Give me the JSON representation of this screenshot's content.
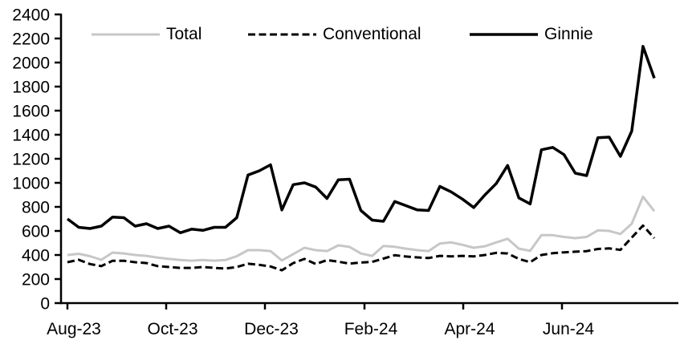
{
  "page": {
    "background": "#ffffff",
    "axis_color": "#000000"
  },
  "chart_data": {
    "type": "line",
    "title": "",
    "xlabel": "",
    "ylabel": "",
    "grid": false,
    "legend_position": "top",
    "x_axis": {
      "tick_labels": [
        "Aug-23",
        "Oct-23",
        "Dec-23",
        "Feb-24",
        "Apr-24",
        "Jun-24"
      ],
      "tick_positions_weeks": [
        0,
        8.75,
        17.5,
        26.32,
        35.07,
        43.82
      ],
      "frequency": "weekly",
      "n_points": 53
    },
    "y_axis": {
      "min": 0,
      "max": 2400,
      "tick_step": 200
    },
    "series": [
      {
        "name": "Total",
        "color": "#c7c7c7",
        "dash": "solid",
        "width": 3,
        "values": [
          400,
          410,
          390,
          360,
          420,
          413,
          400,
          393,
          378,
          367,
          358,
          353,
          358,
          353,
          358,
          390,
          440,
          440,
          433,
          355,
          407,
          460,
          440,
          433,
          480,
          467,
          413,
          393,
          475,
          468,
          453,
          440,
          433,
          495,
          505,
          485,
          460,
          473,
          505,
          535,
          453,
          435,
          565,
          565,
          550,
          540,
          550,
          605,
          600,
          575,
          660,
          885,
          765
        ]
      },
      {
        "name": "Conventional",
        "color": "#000000",
        "dash": "dashed",
        "width": 3,
        "values": [
          340,
          360,
          325,
          307,
          352,
          352,
          340,
          333,
          307,
          300,
          293,
          293,
          300,
          293,
          287,
          300,
          327,
          318,
          305,
          273,
          333,
          367,
          325,
          357,
          345,
          328,
          337,
          343,
          370,
          398,
          387,
          380,
          375,
          393,
          388,
          393,
          388,
          400,
          418,
          413,
          367,
          340,
          400,
          415,
          422,
          427,
          432,
          450,
          455,
          443,
          545,
          645,
          540
        ]
      },
      {
        "name": "Ginnie",
        "color": "#000000",
        "dash": "solid",
        "width": 3.5,
        "values": [
          700,
          630,
          620,
          640,
          715,
          710,
          640,
          660,
          620,
          640,
          585,
          615,
          605,
          630,
          630,
          710,
          1065,
          1100,
          1150,
          775,
          985,
          1000,
          965,
          870,
          1025,
          1030,
          770,
          690,
          680,
          845,
          810,
          775,
          770,
          970,
          925,
          865,
          795,
          900,
          995,
          1145,
          875,
          825,
          1275,
          1295,
          1235,
          1080,
          1060,
          1375,
          1380,
          1220,
          1430,
          2135,
          1870
        ]
      }
    ]
  }
}
